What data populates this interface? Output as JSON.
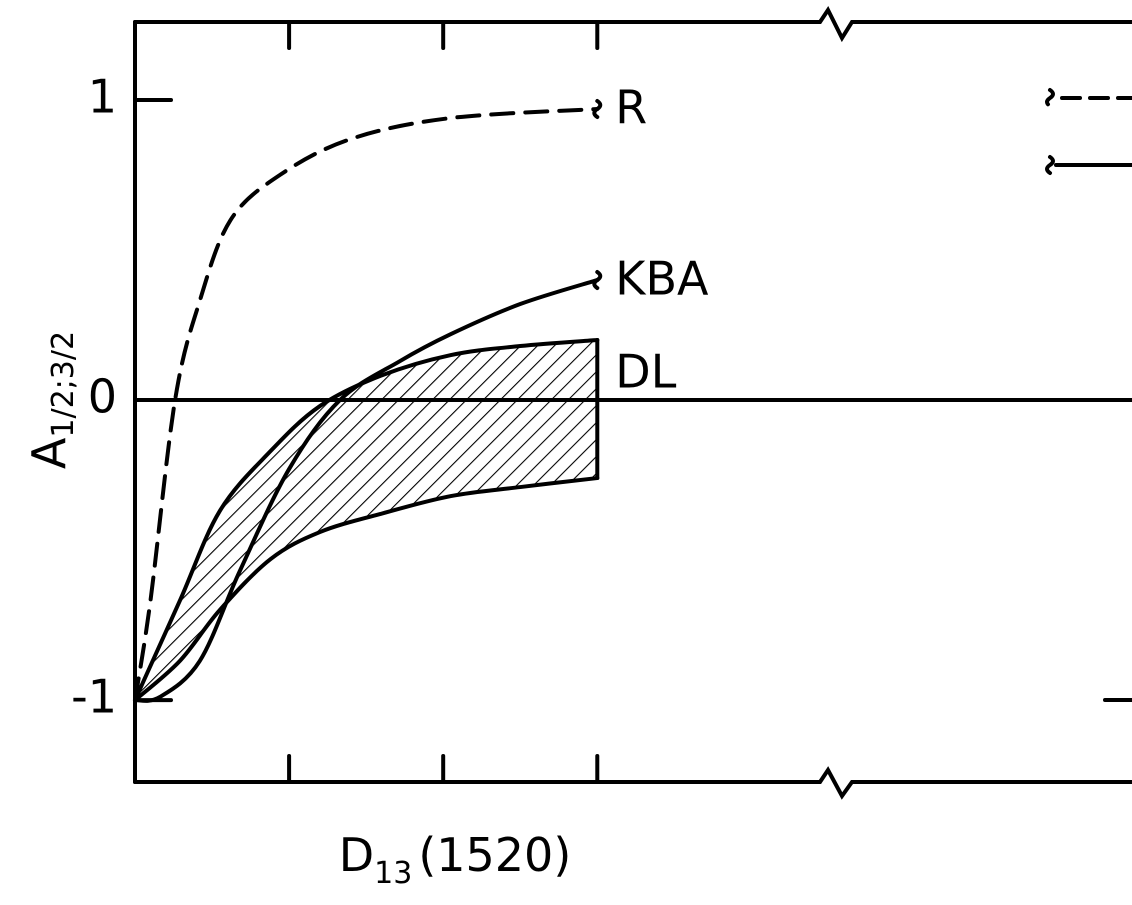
{
  "chart_data": {
    "type": "line",
    "ylabel": {
      "main": "A",
      "sub": "1/2;3/2"
    },
    "xlabel": {
      "main": "D",
      "sub": "13",
      "rest": "(1520)"
    },
    "xlim": [
      0,
      6.47
    ],
    "xticks": [
      1,
      2,
      3
    ],
    "ylim": [
      -1.273,
      1.26
    ],
    "yticks": [
      -1,
      0,
      1
    ],
    "zero_line": true,
    "series": [
      {
        "name": "R",
        "color": "#000000",
        "dash": true,
        "x": [
          0,
          0.1,
          0.26,
          0.42,
          0.62,
          0.94,
          1.4,
          2.05,
          3.0
        ],
        "values": [
          -1,
          -0.67,
          0,
          0.33,
          0.6,
          0.75,
          0.87,
          0.94,
          0.97
        ]
      },
      {
        "name": "KBA",
        "color": "#000000",
        "dash": false,
        "x": [
          0,
          0.16,
          0.42,
          0.68,
          1.0,
          1.33,
          1.72,
          2.05,
          2.5,
          3.0
        ],
        "values": [
          -1,
          -0.99,
          -0.87,
          -0.57,
          -0.23,
          0,
          0.13,
          0.22,
          0.32,
          0.4
        ]
      },
      {
        "name": "DL",
        "color": "#000000",
        "band": true,
        "x": [
          0,
          0.29,
          0.55,
          0.88,
          1.2,
          1.59,
          2.05,
          2.5,
          3.0
        ],
        "values": [
          -1,
          -0.67,
          -0.37,
          -0.17,
          -0.02,
          0.08,
          0.15,
          0.18,
          0.2
        ],
        "lower": [
          -1,
          -0.87,
          -0.7,
          -0.53,
          -0.44,
          -0.38,
          -0.32,
          -0.29,
          -0.26
        ]
      }
    ]
  }
}
